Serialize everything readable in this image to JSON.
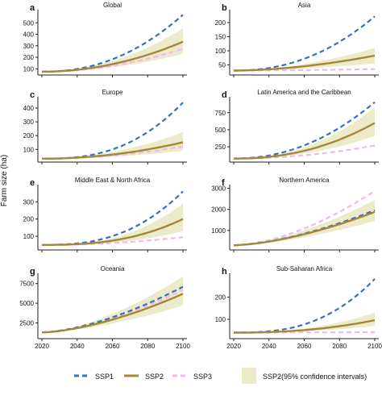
{
  "y_axis_label": "Farm size (ha)",
  "x_ticks": [
    2020,
    2040,
    2060,
    2080,
    2100
  ],
  "colors": {
    "ssp1": "#3a6fc0",
    "ssp2": "#a2883a",
    "ssp3": "#f0b8ec",
    "band": "#ecebc9"
  },
  "legend": {
    "ssp1": "SSP1",
    "ssp2": "SSP2",
    "ssp3": "SSP3",
    "band": "SSP2(95% confidence intervals)"
  },
  "chart_data": [
    {
      "type": "line",
      "panel_letter": "a",
      "title": "Global",
      "x": [
        2020,
        2100
      ],
      "ylim": [
        60,
        600
      ],
      "yticks": [
        100,
        200,
        300,
        400,
        500
      ],
      "series": [
        {
          "name": "SSP1",
          "start": 75,
          "end": 570,
          "exp": 2.2
        },
        {
          "name": "SSP2",
          "start": 75,
          "end": 335,
          "exp": 2.0,
          "band_low_end": 230,
          "band_high_end": 450
        },
        {
          "name": "SSP3",
          "start": 75,
          "end": 275,
          "exp": 2.0
        }
      ]
    },
    {
      "type": "line",
      "panel_letter": "b",
      "title": "Asia",
      "x": [
        2020,
        2100
      ],
      "ylim": [
        20,
        240
      ],
      "yticks": [
        50,
        100,
        150,
        200
      ],
      "series": [
        {
          "name": "SSP1",
          "start": 30,
          "end": 222,
          "exp": 2.2
        },
        {
          "name": "SSP2",
          "start": 30,
          "end": 83,
          "exp": 1.8,
          "band_low_end": 55,
          "band_high_end": 110
        },
        {
          "name": "SSP3",
          "start": 30,
          "end": 35,
          "exp": 1.5
        }
      ]
    },
    {
      "type": "line",
      "panel_letter": "c",
      "title": "Europe",
      "x": [
        2020,
        2100
      ],
      "ylim": [
        20,
        470
      ],
      "yticks": [
        100,
        200,
        300,
        400
      ],
      "series": [
        {
          "name": "SSP1",
          "start": 33,
          "end": 440,
          "exp": 2.6
        },
        {
          "name": "SSP2",
          "start": 33,
          "end": 152,
          "exp": 2.0,
          "band_low_end": 90,
          "band_high_end": 225
        },
        {
          "name": "SSP3",
          "start": 33,
          "end": 122,
          "exp": 2.0
        }
      ]
    },
    {
      "type": "line",
      "panel_letter": "d",
      "title": "Latin America and the Caribbean",
      "x": [
        2020,
        2100
      ],
      "ylim": [
        50,
        960
      ],
      "yticks": [
        250,
        500,
        750
      ],
      "series": [
        {
          "name": "SSP1",
          "start": 78,
          "end": 905,
          "exp": 2.1
        },
        {
          "name": "SSP2",
          "start": 78,
          "end": 600,
          "exp": 2.2,
          "band_low_end": 410,
          "band_high_end": 830
        },
        {
          "name": "SSP3",
          "start": 78,
          "end": 270,
          "exp": 2.0
        }
      ]
    },
    {
      "type": "line",
      "panel_letter": "e",
      "title": "Middle East & North Africa",
      "x": [
        2020,
        2100
      ],
      "ylim": [
        30,
        390
      ],
      "yticks": [
        100,
        200,
        300
      ],
      "series": [
        {
          "name": "SSP1",
          "start": 50,
          "end": 360,
          "exp": 2.6
        },
        {
          "name": "SSP2",
          "start": 50,
          "end": 200,
          "exp": 2.6,
          "band_low_end": 130,
          "band_high_end": 290
        },
        {
          "name": "SSP3",
          "start": 50,
          "end": 95,
          "exp": 2.0
        }
      ]
    },
    {
      "type": "line",
      "panel_letter": "f",
      "title": "Northern America",
      "x": [
        2020,
        2100
      ],
      "ylim": [
        150,
        3100
      ],
      "yticks": [
        1000,
        2000,
        3000
      ],
      "series": [
        {
          "name": "SSP1",
          "start": 300,
          "end": 1960,
          "exp": 1.6
        },
        {
          "name": "SSP2",
          "start": 300,
          "end": 1880,
          "exp": 1.6,
          "band_low_end": 1450,
          "band_high_end": 2450
        },
        {
          "name": "SSP3",
          "start": 300,
          "end": 2880,
          "exp": 1.7
        }
      ]
    },
    {
      "type": "line",
      "panel_letter": "g",
      "title": "Oceania",
      "x": [
        2020,
        2100
      ],
      "ylim": [
        700,
        8600
      ],
      "yticks": [
        2500,
        5000,
        7500
      ],
      "series": [
        {
          "name": "SSP1",
          "start": 1300,
          "end": 7100,
          "exp": 1.6
        },
        {
          "name": "SSP2",
          "start": 1300,
          "end": 6200,
          "exp": 1.6,
          "band_low_end": 4700,
          "band_high_end": 8400
        },
        {
          "name": "SSP3",
          "start": 1300,
          "end": 6700,
          "exp": 1.6
        }
      ]
    },
    {
      "type": "line",
      "panel_letter": "h",
      "title": "Sub-Saharan Africa",
      "x": [
        2020,
        2100
      ],
      "ylim": [
        20,
        300
      ],
      "yticks": [
        100,
        200
      ],
      "series": [
        {
          "name": "SSP1",
          "start": 40,
          "end": 282,
          "exp": 2.7
        },
        {
          "name": "SSP2",
          "start": 40,
          "end": 96,
          "exp": 2.3,
          "band_low_end": 70,
          "band_high_end": 130
        },
        {
          "name": "SSP3",
          "start": 40,
          "end": 42,
          "exp": 1.5
        }
      ]
    }
  ]
}
